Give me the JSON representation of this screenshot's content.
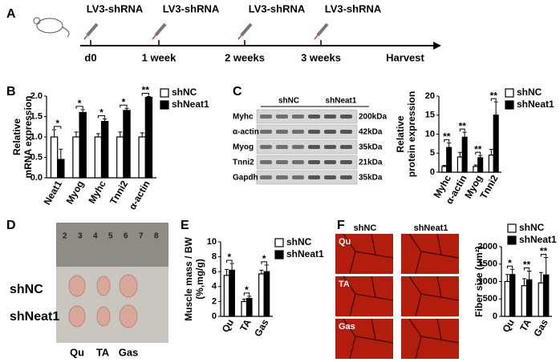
{
  "panel_letters": [
    "A",
    "B",
    "C",
    "D",
    "E",
    "F"
  ],
  "timeline": {
    "injections": [
      "LV3-shRNA",
      "LV3-shRNA",
      "LV3-shRNA",
      "LV3-shRNA"
    ],
    "timepoints": [
      "d0",
      "1 week",
      "2 weeks",
      "3 weeks",
      "Harvest"
    ]
  },
  "western_blot": {
    "groups": [
      "shNC",
      "shNeat1"
    ],
    "rows": [
      {
        "protein": "Myhc",
        "size": "200kDa"
      },
      {
        "protein": "α-actin",
        "size": "42kDa"
      },
      {
        "protein": "Myog",
        "size": "35kDa"
      },
      {
        "protein": "Tnni2",
        "size": "21kDa"
      },
      {
        "protein": "Gapdh",
        "size": "35kDa"
      }
    ]
  },
  "photo": {
    "ruler_numbers": [
      2,
      3,
      4,
      5,
      6,
      7,
      8
    ],
    "rows": [
      "shNC",
      "shNeat1"
    ],
    "columns": [
      "Qu",
      "TA",
      "Gas"
    ]
  },
  "histology": {
    "columns": [
      "shNC",
      "shNeat1"
    ],
    "rows": [
      "Qu",
      "TA",
      "Gas"
    ]
  },
  "chart_data": [
    {
      "type": "bar",
      "ylabel": [
        "Relative",
        "mRNA expression"
      ],
      "categories": [
        "Neat1",
        "Myog",
        "Myhc",
        "Tnni2",
        "α-actin"
      ],
      "series": [
        {
          "name": "shNC",
          "color": "#ffffff",
          "values": [
            1,
            1,
            1,
            1,
            1
          ],
          "errors": [
            0.18,
            0.12,
            0.08,
            0.12,
            0.1
          ]
        },
        {
          "name": "shNeat1",
          "color": "#000000",
          "values": [
            0.45,
            1.6,
            1.38,
            1.65,
            1.97
          ],
          "errors": [
            0.25,
            0.07,
            0.06,
            0.05,
            0.02
          ]
        }
      ],
      "significance": [
        "*",
        "*",
        "*",
        "*",
        "**"
      ],
      "ylim": [
        0,
        2
      ],
      "yticks": [
        {
          "value": 0,
          "label": "0.0"
        },
        0.5,
        {
          "value": 1,
          "label": "1.0"
        },
        1.5,
        {
          "value": 2,
          "label": "2.0"
        }
      ]
    },
    {
      "type": "bar",
      "ylabel": [
        "Relative",
        "protein expression"
      ],
      "categories": [
        "Myhc",
        "α-actin",
        "Myog",
        "Tnni2"
      ],
      "series": [
        {
          "name": "shNC",
          "color": "#ffffff",
          "values": [
            1.5,
            4,
            1.5,
            4.5
          ],
          "errors": [
            0.3,
            1.2,
            0.4,
            1.5
          ]
        },
        {
          "name": "shNeat1",
          "color": "#000000",
          "values": [
            6.5,
            9.2,
            3.8,
            15
          ],
          "errors": [
            1.2,
            1.3,
            0.6,
            3.5
          ]
        }
      ],
      "significance": [
        "**",
        "**",
        "**",
        "**"
      ],
      "ylim": [
        0,
        20
      ],
      "yticks": [
        0,
        5,
        10,
        15,
        20
      ]
    },
    {
      "type": "bar",
      "ylabel": [
        "Muscle mass / BW",
        "(%,mg/g)"
      ],
      "categories": [
        "Qu",
        "TA",
        "Gas"
      ],
      "series": [
        {
          "name": "shNC",
          "color": "#ffffff",
          "values": [
            5.5,
            2.0,
            5.7
          ],
          "errors": [
            0.8,
            0.3,
            0.5
          ]
        },
        {
          "name": "shNeat1",
          "color": "#000000",
          "values": [
            6.2,
            2.4,
            6.0
          ],
          "errors": [
            0.9,
            0.3,
            0.9
          ]
        }
      ],
      "significance": [
        "*",
        "*",
        "*"
      ],
      "ylim": [
        0,
        10
      ],
      "yticks": [
        0,
        2,
        4,
        6,
        8,
        10
      ]
    },
    {
      "type": "bar",
      "ylabel": [
        "Fiber size (μm²)"
      ],
      "categories": [
        "Qu",
        "TA",
        "Gas"
      ],
      "series": [
        {
          "name": "shNC",
          "color": "#ffffff",
          "values": [
            1000,
            880,
            960
          ],
          "errors": [
            200,
            200,
            300
          ]
        },
        {
          "name": "shNeat1",
          "color": "#000000",
          "values": [
            1200,
            1050,
            1190
          ],
          "errors": [
            150,
            250,
            500
          ]
        }
      ],
      "significance": [
        "*",
        "**",
        "**"
      ],
      "ylim": [
        0,
        2000
      ],
      "yticks": [
        0,
        500,
        1000,
        1500,
        2000
      ]
    }
  ]
}
